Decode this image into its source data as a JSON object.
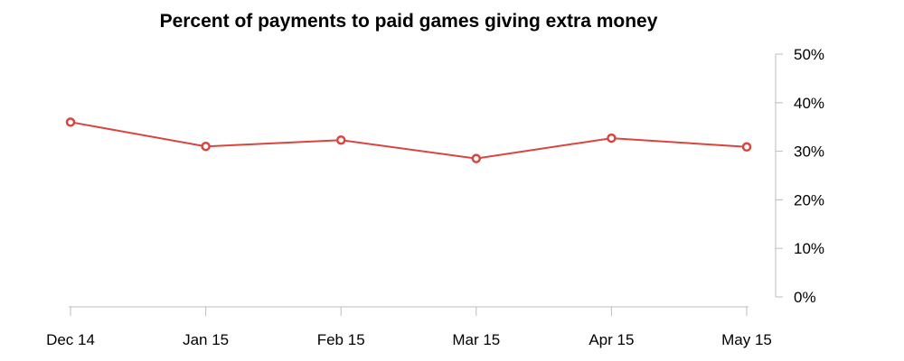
{
  "chart_data": {
    "type": "line",
    "title": "Percent of payments to paid games giving extra money",
    "categories": [
      "Dec 14",
      "Jan 15",
      "Feb 15",
      "Mar 15",
      "Apr 15",
      "May 15"
    ],
    "series": [
      {
        "values": [
          36,
          31,
          32.3,
          28.5,
          32.7,
          30.9
        ],
        "color": "#d9453f"
      }
    ],
    "y_ticks": [
      "0%",
      "10%",
      "20%",
      "30%",
      "40%",
      "50%"
    ],
    "ylim": [
      0,
      50
    ],
    "y_axis_side": "right",
    "grid": false,
    "axis_color": "#bdbdbd"
  }
}
